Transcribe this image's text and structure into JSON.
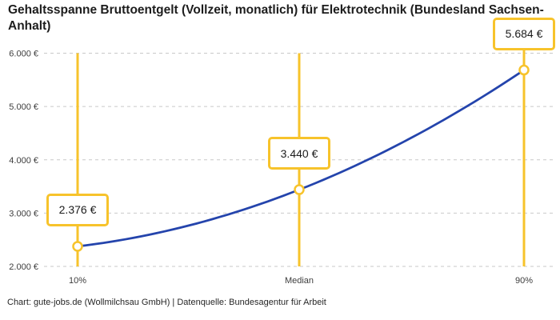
{
  "chart_data": {
    "type": "line",
    "title": "Gehaltsspanne Bruttoentgelt (Vollzeit, monatlich) für Elektrotechnik (Bundesland Sachsen-Anhalt)",
    "attribution": "Chart: gute-jobs.de (Wollmilchsau GmbH) | Datenquelle: Bundesagentur für Arbeit",
    "categories": [
      "10%",
      "Median",
      "90%"
    ],
    "values": [
      2376,
      3440,
      5684
    ],
    "point_labels": [
      "2.376 €",
      "3.440 €",
      "5.684 €"
    ],
    "xlabel": "",
    "ylabel": "",
    "ylim": [
      2000,
      6000
    ],
    "y_ticks": [
      {
        "value": 2000,
        "label": "2.000 €"
      },
      {
        "value": 3000,
        "label": "3.000 €"
      },
      {
        "value": 4000,
        "label": "4.000 €"
      },
      {
        "value": 5000,
        "label": "5.000 €"
      },
      {
        "value": 6000,
        "label": "6.000 €"
      }
    ],
    "grid": "horizontal-dashed",
    "legend": "none",
    "curve": "smooth-monotone",
    "colors": {
      "line": "#2444ac",
      "accent": "#f7c32b",
      "grid": "#c9c9c9",
      "marker_fill": "#ffffff",
      "title_text": "#1d1d1d",
      "tick_text": "#3d3d3d"
    }
  }
}
